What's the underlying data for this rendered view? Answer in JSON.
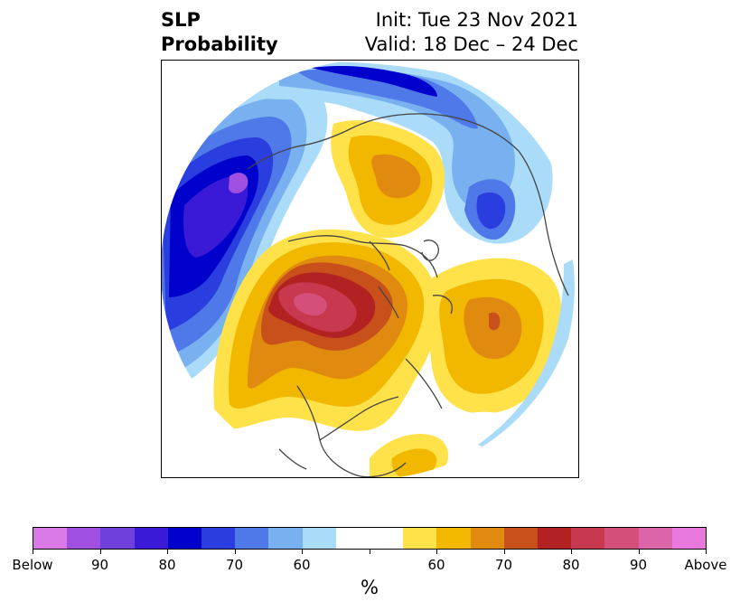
{
  "title": {
    "left_line1": "SLP",
    "left_line2": "Probability",
    "right_line1": "Init: Tue 23 Nov 2021",
    "right_line2": "Valid: 18 Dec – 24 Dec"
  },
  "map": {
    "projection": "north-polar-stereographic",
    "region": "Northern Hemisphere",
    "coastline_color": "#444444",
    "features": [
      {
        "name": "north-pacific-below-center",
        "category": "below",
        "peak_level": "90"
      },
      {
        "name": "north-america-above-center",
        "category": "above",
        "peak_level": "90"
      },
      {
        "name": "north-atlantic-above-center",
        "category": "above",
        "peak_level": "80"
      },
      {
        "name": "siberia-above-center",
        "category": "above",
        "peak_level": "70"
      },
      {
        "name": "east-asia-below-center",
        "category": "below",
        "peak_level": "70"
      },
      {
        "name": "gulf-of-mexico-above-center",
        "category": "above",
        "peak_level": "60"
      }
    ]
  },
  "colorbar": {
    "colors": [
      "#d97ae6",
      "#a050e0",
      "#7040dc",
      "#3a1ad6",
      "#0000cc",
      "#2a3ee0",
      "#4f78e8",
      "#78b0f0",
      "#aadcfa",
      "#ffffff",
      "#ffffff",
      "#ffe24a",
      "#f2b800",
      "#e08a10",
      "#c8501a",
      "#b22222",
      "#c8384e",
      "#d4507a",
      "#dc64a8",
      "#e878dc"
    ],
    "tick_labels": [
      "Below",
      "90",
      "80",
      "70",
      "60",
      "",
      "60",
      "70",
      "80",
      "90",
      "Above"
    ],
    "label": "%"
  }
}
